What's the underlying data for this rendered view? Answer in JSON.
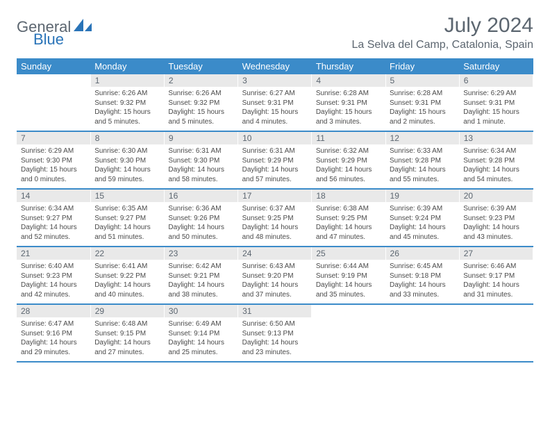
{
  "brand": {
    "part1": "General",
    "part2": "Blue",
    "accent": "#2a74b8",
    "gray": "#5c6670"
  },
  "title": "July 2024",
  "location": "La Selva del Camp, Catalonia, Spain",
  "colors": {
    "header_bg": "#3b8bc9",
    "header_fg": "#ffffff",
    "daynum_bg": "#e9e9e9",
    "text": "#4a4a4a",
    "rule": "#3b8bc9"
  },
  "weekdays": [
    "Sunday",
    "Monday",
    "Tuesday",
    "Wednesday",
    "Thursday",
    "Friday",
    "Saturday"
  ],
  "weeks": [
    {
      "nums": [
        "",
        "1",
        "2",
        "3",
        "4",
        "5",
        "6"
      ],
      "cells": [
        null,
        {
          "sunrise": "6:26 AM",
          "sunset": "9:32 PM",
          "dl1": "15 hours",
          "dl2": "and 5 minutes."
        },
        {
          "sunrise": "6:26 AM",
          "sunset": "9:32 PM",
          "dl1": "15 hours",
          "dl2": "and 5 minutes."
        },
        {
          "sunrise": "6:27 AM",
          "sunset": "9:31 PM",
          "dl1": "15 hours",
          "dl2": "and 4 minutes."
        },
        {
          "sunrise": "6:28 AM",
          "sunset": "9:31 PM",
          "dl1": "15 hours",
          "dl2": "and 3 minutes."
        },
        {
          "sunrise": "6:28 AM",
          "sunset": "9:31 PM",
          "dl1": "15 hours",
          "dl2": "and 2 minutes."
        },
        {
          "sunrise": "6:29 AM",
          "sunset": "9:31 PM",
          "dl1": "15 hours",
          "dl2": "and 1 minute."
        }
      ]
    },
    {
      "nums": [
        "7",
        "8",
        "9",
        "10",
        "11",
        "12",
        "13"
      ],
      "cells": [
        {
          "sunrise": "6:29 AM",
          "sunset": "9:30 PM",
          "dl1": "15 hours",
          "dl2": "and 0 minutes."
        },
        {
          "sunrise": "6:30 AM",
          "sunset": "9:30 PM",
          "dl1": "14 hours",
          "dl2": "and 59 minutes."
        },
        {
          "sunrise": "6:31 AM",
          "sunset": "9:30 PM",
          "dl1": "14 hours",
          "dl2": "and 58 minutes."
        },
        {
          "sunrise": "6:31 AM",
          "sunset": "9:29 PM",
          "dl1": "14 hours",
          "dl2": "and 57 minutes."
        },
        {
          "sunrise": "6:32 AM",
          "sunset": "9:29 PM",
          "dl1": "14 hours",
          "dl2": "and 56 minutes."
        },
        {
          "sunrise": "6:33 AM",
          "sunset": "9:28 PM",
          "dl1": "14 hours",
          "dl2": "and 55 minutes."
        },
        {
          "sunrise": "6:34 AM",
          "sunset": "9:28 PM",
          "dl1": "14 hours",
          "dl2": "and 54 minutes."
        }
      ]
    },
    {
      "nums": [
        "14",
        "15",
        "16",
        "17",
        "18",
        "19",
        "20"
      ],
      "cells": [
        {
          "sunrise": "6:34 AM",
          "sunset": "9:27 PM",
          "dl1": "14 hours",
          "dl2": "and 52 minutes."
        },
        {
          "sunrise": "6:35 AM",
          "sunset": "9:27 PM",
          "dl1": "14 hours",
          "dl2": "and 51 minutes."
        },
        {
          "sunrise": "6:36 AM",
          "sunset": "9:26 PM",
          "dl1": "14 hours",
          "dl2": "and 50 minutes."
        },
        {
          "sunrise": "6:37 AM",
          "sunset": "9:25 PM",
          "dl1": "14 hours",
          "dl2": "and 48 minutes."
        },
        {
          "sunrise": "6:38 AM",
          "sunset": "9:25 PM",
          "dl1": "14 hours",
          "dl2": "and 47 minutes."
        },
        {
          "sunrise": "6:39 AM",
          "sunset": "9:24 PM",
          "dl1": "14 hours",
          "dl2": "and 45 minutes."
        },
        {
          "sunrise": "6:39 AM",
          "sunset": "9:23 PM",
          "dl1": "14 hours",
          "dl2": "and 43 minutes."
        }
      ]
    },
    {
      "nums": [
        "21",
        "22",
        "23",
        "24",
        "25",
        "26",
        "27"
      ],
      "cells": [
        {
          "sunrise": "6:40 AM",
          "sunset": "9:23 PM",
          "dl1": "14 hours",
          "dl2": "and 42 minutes."
        },
        {
          "sunrise": "6:41 AM",
          "sunset": "9:22 PM",
          "dl1": "14 hours",
          "dl2": "and 40 minutes."
        },
        {
          "sunrise": "6:42 AM",
          "sunset": "9:21 PM",
          "dl1": "14 hours",
          "dl2": "and 38 minutes."
        },
        {
          "sunrise": "6:43 AM",
          "sunset": "9:20 PM",
          "dl1": "14 hours",
          "dl2": "and 37 minutes."
        },
        {
          "sunrise": "6:44 AM",
          "sunset": "9:19 PM",
          "dl1": "14 hours",
          "dl2": "and 35 minutes."
        },
        {
          "sunrise": "6:45 AM",
          "sunset": "9:18 PM",
          "dl1": "14 hours",
          "dl2": "and 33 minutes."
        },
        {
          "sunrise": "6:46 AM",
          "sunset": "9:17 PM",
          "dl1": "14 hours",
          "dl2": "and 31 minutes."
        }
      ]
    },
    {
      "nums": [
        "28",
        "29",
        "30",
        "31",
        "",
        "",
        ""
      ],
      "cells": [
        {
          "sunrise": "6:47 AM",
          "sunset": "9:16 PM",
          "dl1": "14 hours",
          "dl2": "and 29 minutes."
        },
        {
          "sunrise": "6:48 AM",
          "sunset": "9:15 PM",
          "dl1": "14 hours",
          "dl2": "and 27 minutes."
        },
        {
          "sunrise": "6:49 AM",
          "sunset": "9:14 PM",
          "dl1": "14 hours",
          "dl2": "and 25 minutes."
        },
        {
          "sunrise": "6:50 AM",
          "sunset": "9:13 PM",
          "dl1": "14 hours",
          "dl2": "and 23 minutes."
        },
        null,
        null,
        null
      ]
    }
  ]
}
